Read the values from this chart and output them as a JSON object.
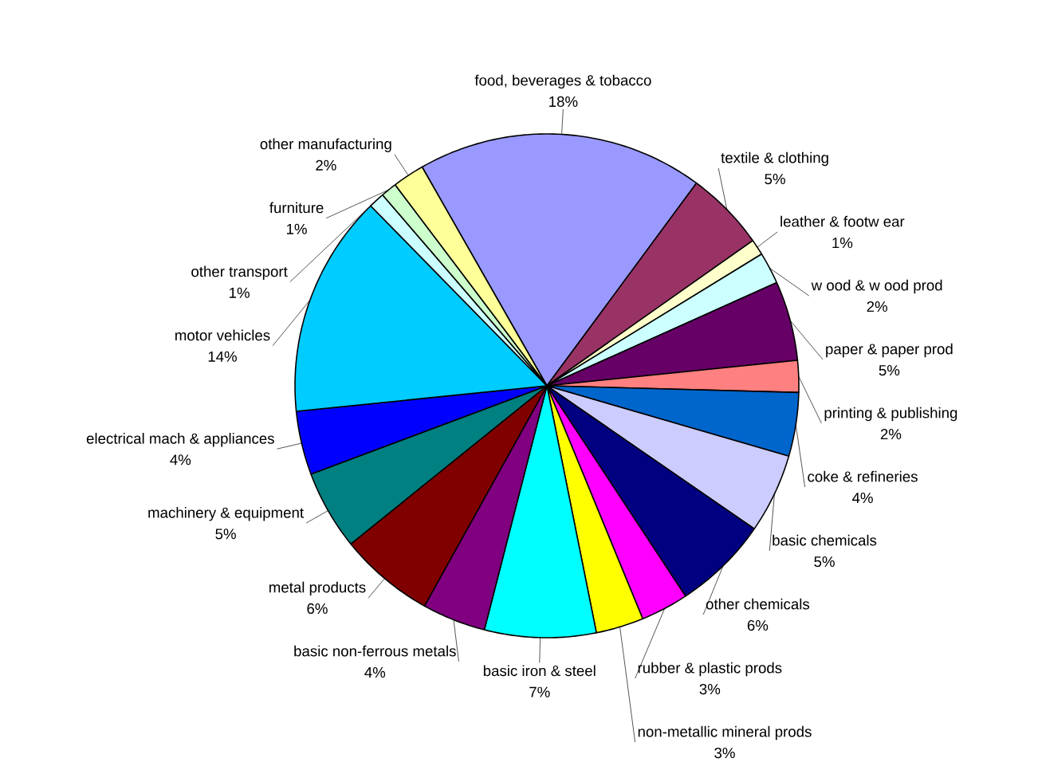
{
  "chart_data": {
    "type": "pie",
    "categories": [
      "food, beverages & tobacco",
      "textile & clothing",
      "leather & footw ear",
      "w ood & w ood prod",
      "paper & paper prod",
      "printing & publishing",
      "coke & refineries",
      "basic chemicals",
      "other chemicals",
      "rubber & plastic prods",
      "non-metallic mineral prods",
      "basic iron & steel",
      "basic non-ferrous metals",
      "metal products",
      "machinery & equipment",
      "electrical mach & appliances",
      "motor vehicles",
      "other transport",
      "furniture",
      "other manufacturing"
    ],
    "values": [
      18,
      5,
      1,
      2,
      5,
      2,
      4,
      5,
      6,
      3,
      3,
      7,
      4,
      6,
      5,
      4,
      14,
      1,
      1,
      2
    ],
    "value_labels": [
      "18%",
      "5%",
      "1%",
      "2%",
      "5%",
      "2%",
      "4%",
      "5%",
      "6%",
      "3%",
      "3%",
      "7%",
      "4%",
      "6%",
      "5%",
      "4%",
      "14%",
      "1%",
      "1%",
      "2%"
    ],
    "colors": [
      "#9999ff",
      "#993366",
      "#ffffcc",
      "#ccffff",
      "#660066",
      "#ff8080",
      "#0066cc",
      "#ccccff",
      "#000080",
      "#ff00ff",
      "#ffff00",
      "#00ffff",
      "#800080",
      "#800000",
      "#008080",
      "#0000ff",
      "#00ccff",
      "#ccffff",
      "#ccffcc",
      "#ffff99"
    ]
  }
}
